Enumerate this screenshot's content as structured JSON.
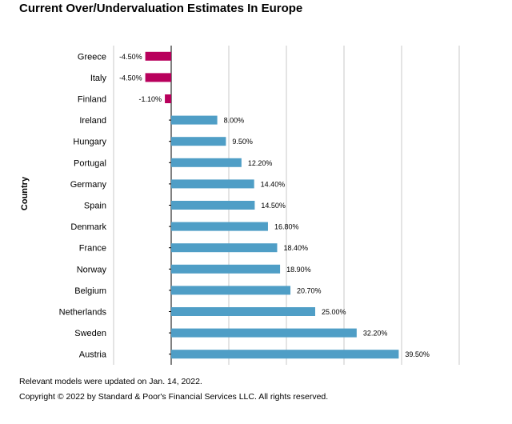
{
  "chart_data": {
    "type": "bar",
    "orientation": "horizontal",
    "title": "Current Over/Undervaluation Estimates In Europe",
    "ylabel": "Country",
    "xlabel": "",
    "categories": [
      "Greece",
      "Italy",
      "Finland",
      "Ireland",
      "Hungary",
      "Portugal",
      "Germany",
      "Spain",
      "Denmark",
      "France",
      "Norway",
      "Belgium",
      "Netherlands",
      "Sweden",
      "Austria"
    ],
    "values": [
      -4.5,
      -4.5,
      -1.1,
      8.0,
      9.5,
      12.2,
      14.4,
      14.5,
      16.8,
      18.4,
      18.9,
      20.7,
      25.0,
      32.2,
      39.5
    ],
    "data_labels": [
      "-4.50%",
      "-4.50%",
      "-1.10%",
      "8.00%",
      "9.50%",
      "12.20%",
      "14.40%",
      "14.50%",
      "16.80%",
      "18.40%",
      "18.90%",
      "20.70%",
      "25.00%",
      "32.20%",
      "39.50%"
    ],
    "xlim": [
      -10,
      50
    ],
    "gridlines": [
      -10,
      0,
      10,
      20,
      30,
      40,
      50
    ],
    "grid": true,
    "tick_labels_shown": false,
    "colors": {
      "positive": "#4f9ec6",
      "negative": "#b8005c",
      "grid": "#c8c8c8"
    }
  },
  "footnotes": {
    "line1": "Relevant models were updated on Jan. 14, 2022.",
    "line2": "Copyright © 2022 by Standard & Poor's Financial Services LLC. All rights reserved."
  }
}
